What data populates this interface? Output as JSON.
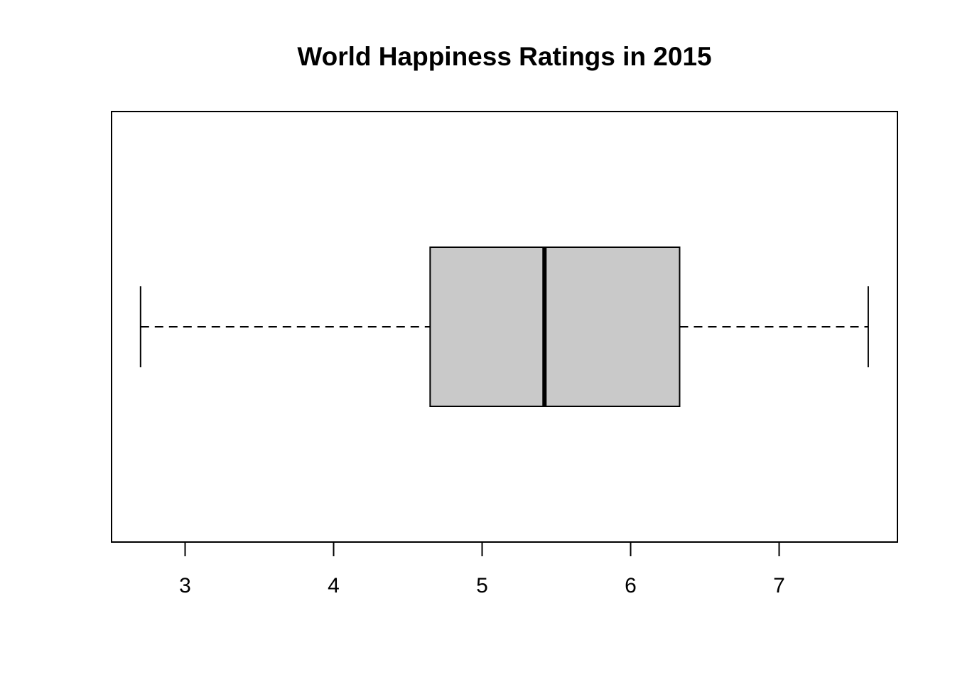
{
  "chart_data": {
    "type": "boxplot",
    "orientation": "horizontal",
    "title": "World Happiness Ratings in 2015",
    "xlabel": "",
    "ylabel": "",
    "xlim": [
      2.5,
      7.8
    ],
    "x_ticks": [
      3,
      4,
      5,
      6,
      7
    ],
    "x_tick_labels": [
      "3",
      "4",
      "5",
      "6",
      "7"
    ],
    "grid": false,
    "series": [
      {
        "whisker_low": 2.7,
        "q1": 4.65,
        "median": 5.42,
        "q3": 6.33,
        "whisker_high": 7.6
      }
    ],
    "colors": {
      "box_fill": "#c9c9c9",
      "line": "#000000",
      "background": "#ffffff"
    }
  }
}
